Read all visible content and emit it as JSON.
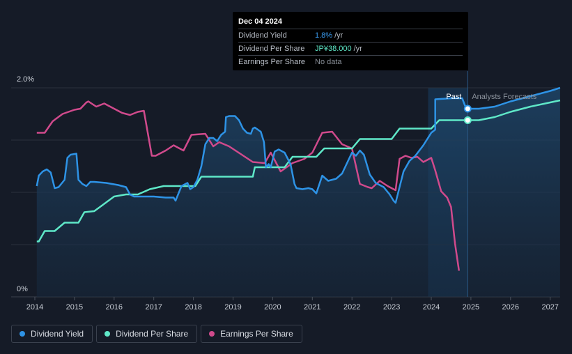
{
  "tooltip": {
    "date": "Dec 04 2024",
    "rows": [
      {
        "label": "Dividend Yield",
        "value": "1.8%",
        "unit": "/yr"
      },
      {
        "label": "Dividend Per Share",
        "value": "JP¥38.000",
        "unit": "/yr"
      },
      {
        "label": "Earnings Per Share",
        "value": "No data",
        "unit": ""
      }
    ]
  },
  "legend": [
    {
      "label": "Dividend Yield",
      "color": "#2e93e6"
    },
    {
      "label": "Dividend Per Share",
      "color": "#5fe8c8"
    },
    {
      "label": "Earnings Per Share",
      "color": "#d04a8c"
    }
  ],
  "chart_data": {
    "type": "line",
    "y_tick_labels": [
      "2.0%",
      "0%"
    ],
    "ylim": [
      0,
      2.0
    ],
    "xlim": [
      2013.9,
      2027.25
    ],
    "x_ticks": [
      "2014",
      "2015",
      "2016",
      "2017",
      "2018",
      "2019",
      "2020",
      "2021",
      "2022",
      "2023",
      "2024",
      "2025",
      "2026",
      "2027"
    ],
    "past_label": "Past",
    "forecast_label": "Analysts Forecasts",
    "forecast_region_start": 2023.92,
    "today": 2024.92,
    "grid": true,
    "colors": {
      "yield": "#2e93e6",
      "dps": "#5fe8c8",
      "eps": "#d04a8c",
      "area": "#1c3a58"
    },
    "series": [
      {
        "name": "Dividend Yield",
        "unit": "%",
        "points": [
          [
            2014.05,
            1.06
          ],
          [
            2014.1,
            1.16
          ],
          [
            2014.2,
            1.2
          ],
          [
            2014.3,
            1.22
          ],
          [
            2014.4,
            1.19
          ],
          [
            2014.5,
            1.04
          ],
          [
            2014.6,
            1.05
          ],
          [
            2014.75,
            1.12
          ],
          [
            2014.82,
            1.33
          ],
          [
            2014.9,
            1.36
          ],
          [
            2015.05,
            1.37
          ],
          [
            2015.1,
            1.12
          ],
          [
            2015.2,
            1.08
          ],
          [
            2015.3,
            1.06
          ],
          [
            2015.4,
            1.1
          ],
          [
            2015.5,
            1.1
          ],
          [
            2015.8,
            1.09
          ],
          [
            2016.1,
            1.07
          ],
          [
            2016.3,
            1.05
          ],
          [
            2016.4,
            0.98
          ],
          [
            2016.5,
            0.96
          ],
          [
            2017.0,
            0.96
          ],
          [
            2017.3,
            0.95
          ],
          [
            2017.5,
            0.95
          ],
          [
            2017.55,
            0.92
          ],
          [
            2017.7,
            1.06
          ],
          [
            2017.8,
            1.08
          ],
          [
            2017.85,
            1.09
          ],
          [
            2017.92,
            1.03
          ],
          [
            2018.0,
            1.05
          ],
          [
            2018.1,
            1.12
          ],
          [
            2018.2,
            1.25
          ],
          [
            2018.3,
            1.46
          ],
          [
            2018.4,
            1.52
          ],
          [
            2018.5,
            1.52
          ],
          [
            2018.6,
            1.49
          ],
          [
            2018.7,
            1.55
          ],
          [
            2018.8,
            1.58
          ],
          [
            2018.82,
            1.72
          ],
          [
            2018.9,
            1.73
          ],
          [
            2019.05,
            1.73
          ],
          [
            2019.15,
            1.69
          ],
          [
            2019.25,
            1.61
          ],
          [
            2019.35,
            1.57
          ],
          [
            2019.45,
            1.56
          ],
          [
            2019.5,
            1.61
          ],
          [
            2019.55,
            1.62
          ],
          [
            2019.7,
            1.58
          ],
          [
            2019.78,
            1.48
          ],
          [
            2019.83,
            1.24
          ],
          [
            2019.9,
            1.27
          ],
          [
            2019.95,
            1.24
          ],
          [
            2020.05,
            1.39
          ],
          [
            2020.15,
            1.41
          ],
          [
            2020.3,
            1.38
          ],
          [
            2020.45,
            1.27
          ],
          [
            2020.55,
            1.08
          ],
          [
            2020.6,
            1.04
          ],
          [
            2020.75,
            1.03
          ],
          [
            2020.9,
            1.04
          ],
          [
            2021.0,
            1.03
          ],
          [
            2021.1,
            0.99
          ],
          [
            2021.25,
            1.16
          ],
          [
            2021.4,
            1.11
          ],
          [
            2021.6,
            1.13
          ],
          [
            2021.75,
            1.18
          ],
          [
            2021.9,
            1.3
          ],
          [
            2022.0,
            1.38
          ],
          [
            2022.1,
            1.35
          ],
          [
            2022.2,
            1.4
          ],
          [
            2022.3,
            1.36
          ],
          [
            2022.45,
            1.17
          ],
          [
            2022.6,
            1.09
          ],
          [
            2022.8,
            1.05
          ],
          [
            2022.95,
            0.98
          ],
          [
            2023.05,
            0.92
          ],
          [
            2023.1,
            0.9
          ],
          [
            2023.2,
            1.05
          ],
          [
            2023.3,
            1.2
          ],
          [
            2023.45,
            1.3
          ],
          [
            2023.6,
            1.35
          ],
          [
            2023.8,
            1.45
          ],
          [
            2024.0,
            1.57
          ],
          [
            2024.1,
            1.6
          ],
          [
            2024.1,
            1.89
          ],
          [
            2024.5,
            1.9
          ],
          [
            2024.78,
            1.9
          ],
          [
            2024.85,
            1.83
          ],
          [
            2024.92,
            1.8
          ],
          [
            2025.2,
            1.8
          ],
          [
            2025.6,
            1.82
          ],
          [
            2026.0,
            1.87
          ],
          [
            2026.5,
            1.92
          ],
          [
            2027.0,
            1.97
          ],
          [
            2027.25,
            2.0
          ]
        ]
      },
      {
        "name": "Dividend Per Share",
        "points": [
          [
            2014.05,
            0.53
          ],
          [
            2014.1,
            0.53
          ],
          [
            2014.25,
            0.63
          ],
          [
            2014.5,
            0.63
          ],
          [
            2014.75,
            0.71
          ],
          [
            2015.1,
            0.71
          ],
          [
            2015.25,
            0.81
          ],
          [
            2015.5,
            0.82
          ],
          [
            2015.75,
            0.89
          ],
          [
            2016.0,
            0.96
          ],
          [
            2016.3,
            0.98
          ],
          [
            2016.6,
            0.98
          ],
          [
            2016.9,
            1.03
          ],
          [
            2017.25,
            1.06
          ],
          [
            2017.8,
            1.06
          ],
          [
            2018.05,
            1.06
          ],
          [
            2018.2,
            1.15
          ],
          [
            2018.75,
            1.15
          ],
          [
            2019.5,
            1.15
          ],
          [
            2019.55,
            1.24
          ],
          [
            2020.3,
            1.24
          ],
          [
            2020.5,
            1.34
          ],
          [
            2021.1,
            1.34
          ],
          [
            2021.3,
            1.42
          ],
          [
            2022.0,
            1.42
          ],
          [
            2022.2,
            1.51
          ],
          [
            2023.0,
            1.51
          ],
          [
            2023.2,
            1.61
          ],
          [
            2024.0,
            1.61
          ],
          [
            2024.2,
            1.69
          ],
          [
            2024.92,
            1.69
          ],
          [
            2025.2,
            1.69
          ],
          [
            2025.6,
            1.72
          ],
          [
            2026.0,
            1.77
          ],
          [
            2026.5,
            1.82
          ],
          [
            2027.0,
            1.86
          ],
          [
            2027.25,
            1.88
          ]
        ]
      },
      {
        "name": "Earnings Per Share",
        "points": [
          [
            2014.05,
            1.57
          ],
          [
            2014.25,
            1.57
          ],
          [
            2014.45,
            1.68
          ],
          [
            2014.7,
            1.75
          ],
          [
            2015.0,
            1.79
          ],
          [
            2015.15,
            1.8
          ],
          [
            2015.3,
            1.86
          ],
          [
            2015.35,
            1.87
          ],
          [
            2015.55,
            1.82
          ],
          [
            2015.75,
            1.85
          ],
          [
            2015.95,
            1.81
          ],
          [
            2016.2,
            1.76
          ],
          [
            2016.4,
            1.74
          ],
          [
            2016.6,
            1.77
          ],
          [
            2016.75,
            1.78
          ],
          [
            2016.95,
            1.35
          ],
          [
            2017.05,
            1.35
          ],
          [
            2017.3,
            1.4
          ],
          [
            2017.5,
            1.45
          ],
          [
            2017.75,
            1.4
          ],
          [
            2017.95,
            1.55
          ],
          [
            2018.3,
            1.56
          ],
          [
            2018.5,
            1.44
          ],
          [
            2018.65,
            1.48
          ],
          [
            2018.9,
            1.44
          ],
          [
            2019.1,
            1.39
          ],
          [
            2019.5,
            1.29
          ],
          [
            2019.8,
            1.28
          ],
          [
            2019.95,
            1.38
          ],
          [
            2020.2,
            1.2
          ],
          [
            2020.5,
            1.28
          ],
          [
            2020.8,
            1.32
          ],
          [
            2021.0,
            1.38
          ],
          [
            2021.25,
            1.57
          ],
          [
            2021.5,
            1.58
          ],
          [
            2021.75,
            1.46
          ],
          [
            2022.0,
            1.42
          ],
          [
            2022.2,
            1.08
          ],
          [
            2022.4,
            1.05
          ],
          [
            2022.5,
            1.04
          ],
          [
            2022.7,
            1.11
          ],
          [
            2022.9,
            1.06
          ],
          [
            2023.1,
            1.02
          ],
          [
            2023.2,
            1.32
          ],
          [
            2023.35,
            1.35
          ],
          [
            2023.5,
            1.33
          ],
          [
            2023.65,
            1.34
          ],
          [
            2023.8,
            1.29
          ],
          [
            2024.0,
            1.33
          ],
          [
            2024.1,
            1.21
          ],
          [
            2024.25,
            1.01
          ],
          [
            2024.4,
            0.95
          ],
          [
            2024.5,
            0.86
          ],
          [
            2024.6,
            0.51
          ],
          [
            2024.7,
            0.25
          ]
        ]
      }
    ]
  }
}
